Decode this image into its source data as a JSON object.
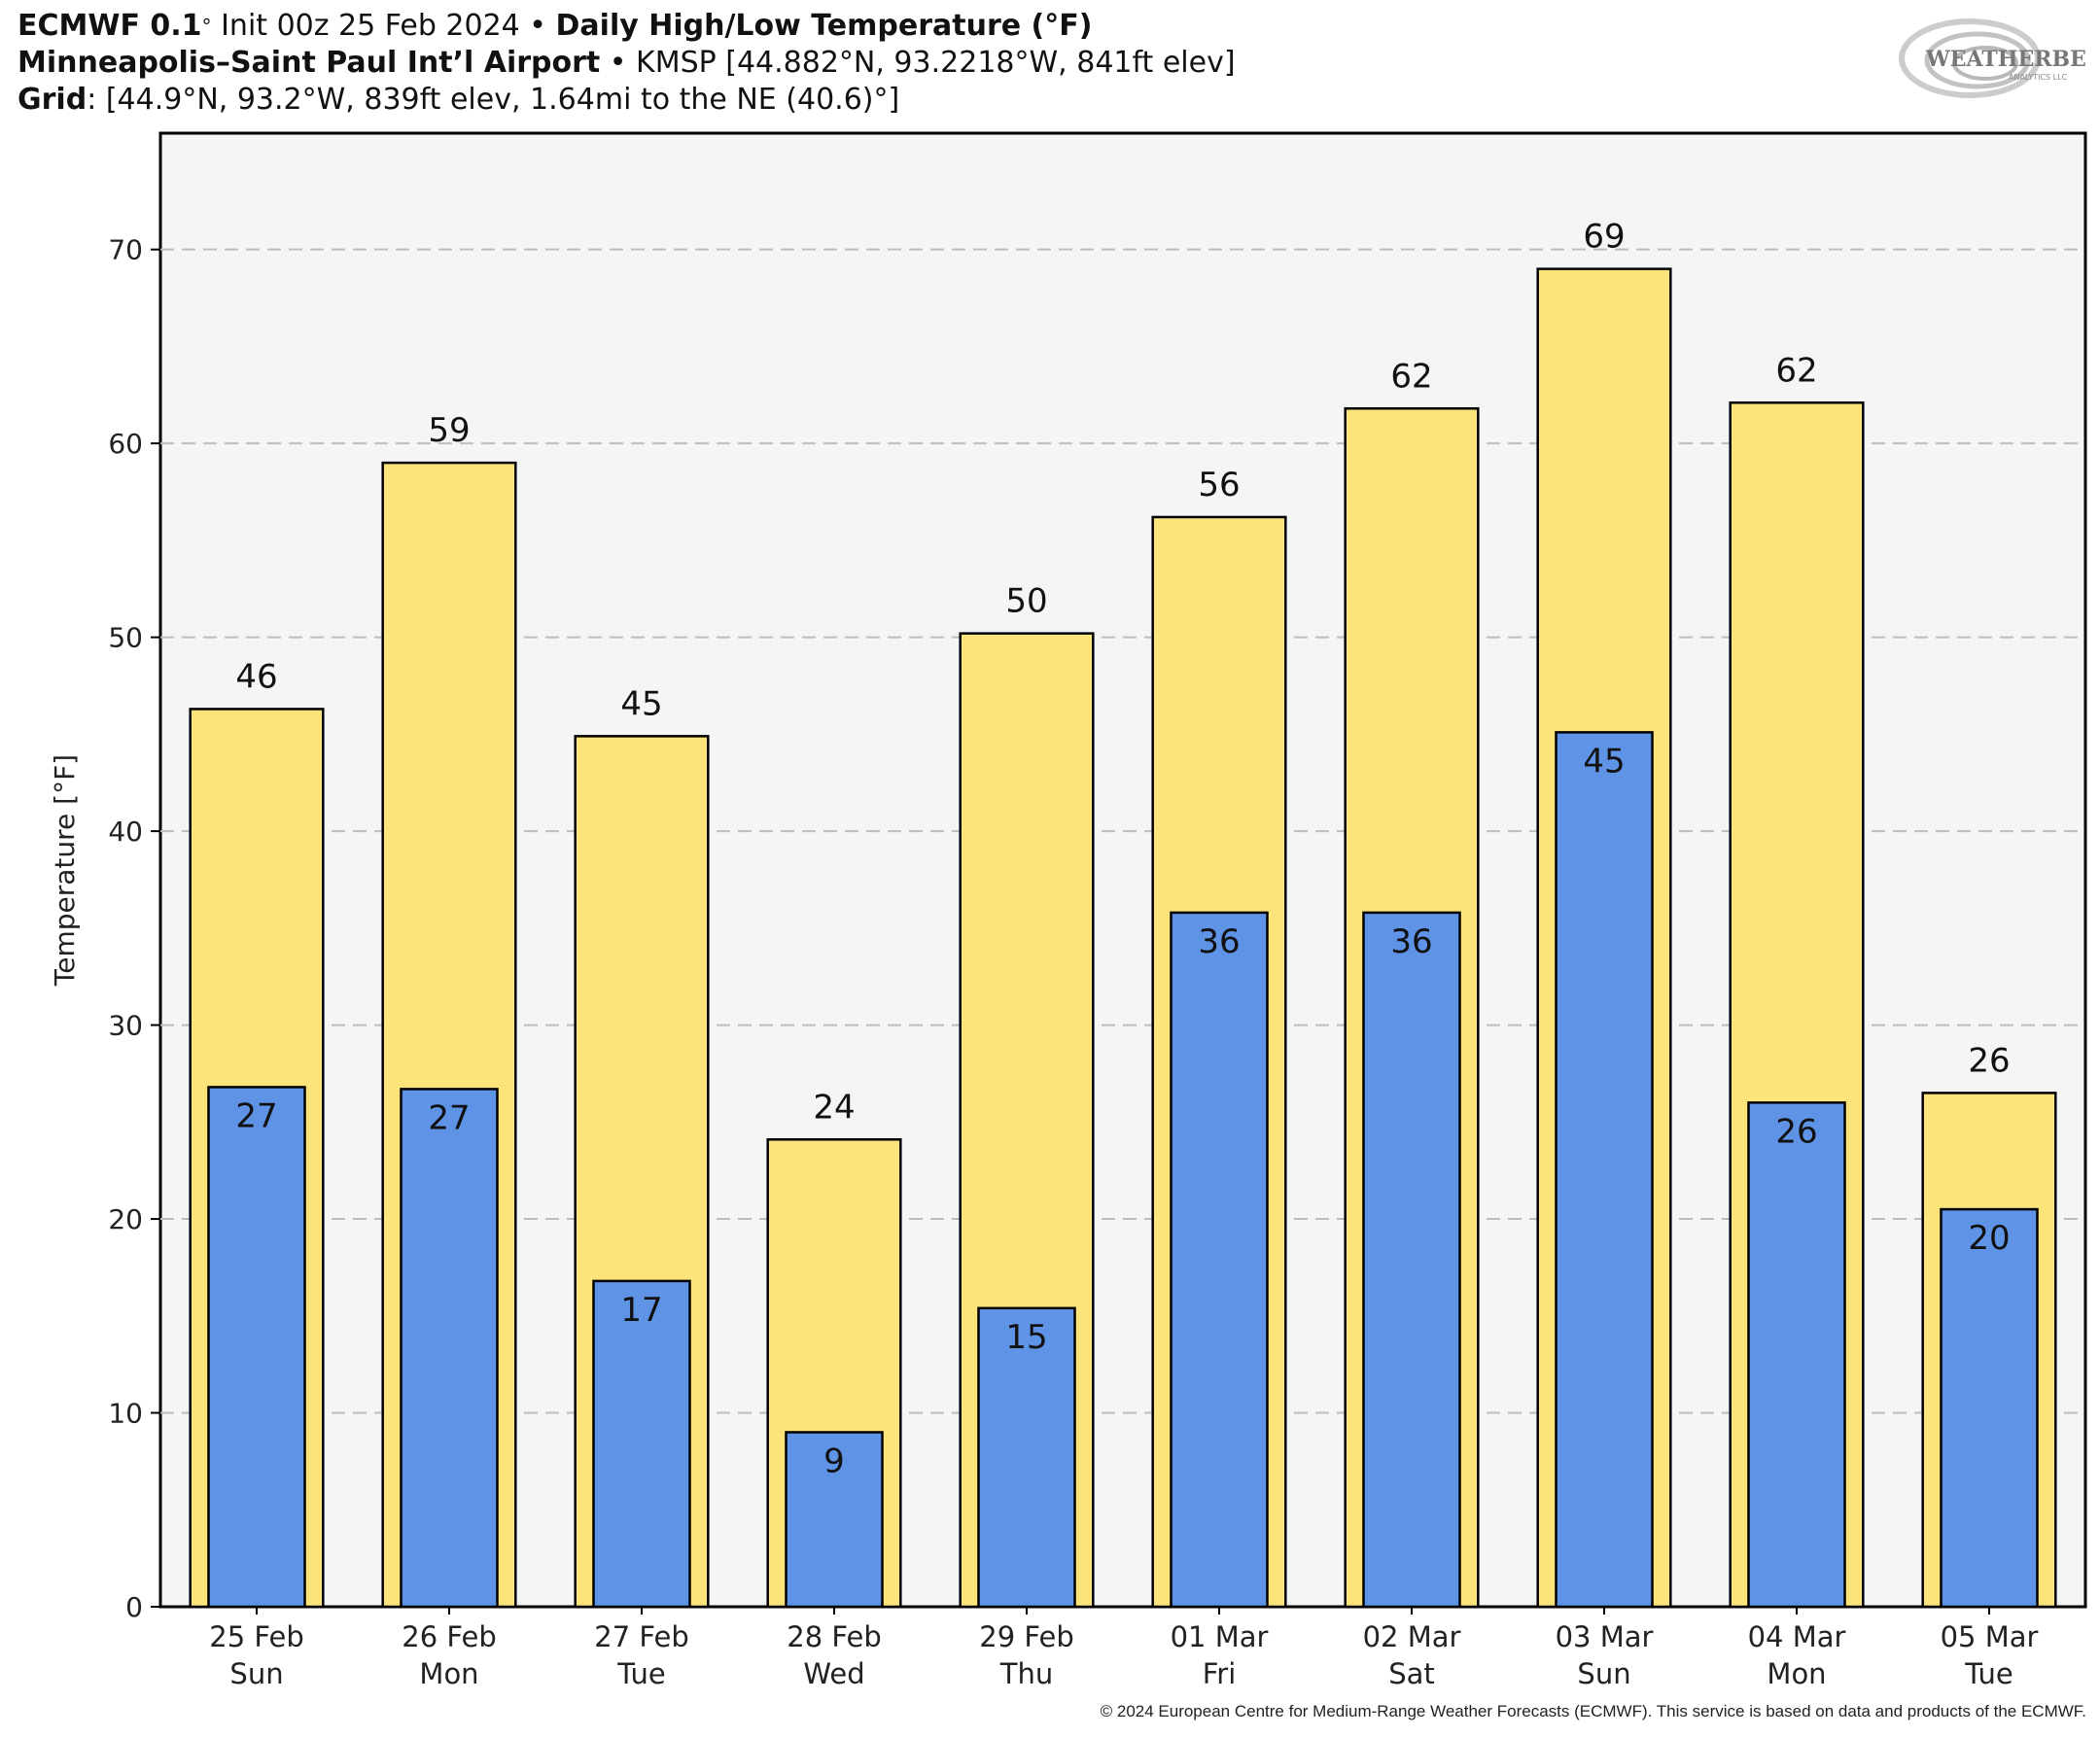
{
  "header": {
    "line1_bold1": "ECMWF 0.1",
    "line1_sup": "°",
    "line1_rest": " Init 00z 25 Feb 2024",
    "line1_bullet": " • ",
    "line1_bold2": "Daily High/Low Temperature (°F)",
    "line2_bold": "Minneapolis–Saint Paul Int’l Airport",
    "line2_rest": " • KMSP [44.882°N, 93.2218°W, 841ft elev]",
    "line3_bold": "Grid",
    "line3_rest": ": [44.9°N, 93.2°W, 839ft elev, 1.64mi to the NE (40.6)°]"
  },
  "logo": {
    "text": "WEATHERBELL",
    "subtext": "ANALYTICS LLC",
    "icon": "swirl-logo-icon"
  },
  "copyright": "© 2024 European Centre for Medium-Range Weather Forecasts (ECMWF). This service is based on data and products of the ECMWF.",
  "chart_data": {
    "type": "bar",
    "ylabel": "Temperature [°F]",
    "ylim": [
      0,
      76
    ],
    "yticks": [
      0,
      10,
      20,
      30,
      40,
      50,
      60,
      70
    ],
    "grid": true,
    "categories": [
      {
        "date": "25 Feb",
        "day": "Sun"
      },
      {
        "date": "26 Feb",
        "day": "Mon"
      },
      {
        "date": "27 Feb",
        "day": "Tue"
      },
      {
        "date": "28 Feb",
        "day": "Wed"
      },
      {
        "date": "29 Feb",
        "day": "Thu"
      },
      {
        "date": "01 Mar",
        "day": "Fri"
      },
      {
        "date": "02 Mar",
        "day": "Sat"
      },
      {
        "date": "03 Mar",
        "day": "Sun"
      },
      {
        "date": "04 Mar",
        "day": "Mon"
      },
      {
        "date": "05 Mar",
        "day": "Tue"
      }
    ],
    "series": [
      {
        "values": [
          46.3,
          59.0,
          44.9,
          24.1,
          50.2,
          56.2,
          61.8,
          69.0,
          62.1,
          26.5
        ],
        "labels": [
          "46",
          "59",
          "45",
          "24",
          "50",
          "56",
          "62",
          "69",
          "62",
          "26"
        ],
        "color": "#fce37a"
      },
      {
        "values": [
          26.8,
          26.7,
          16.8,
          9.0,
          15.4,
          35.8,
          35.8,
          45.1,
          26.0,
          20.5
        ],
        "labels": [
          "27",
          "27",
          "17",
          "9",
          "15",
          "36",
          "36",
          "45",
          "26",
          "20"
        ],
        "color": "#5f93e6"
      }
    ],
    "plot_background": "#f5f5f5"
  }
}
